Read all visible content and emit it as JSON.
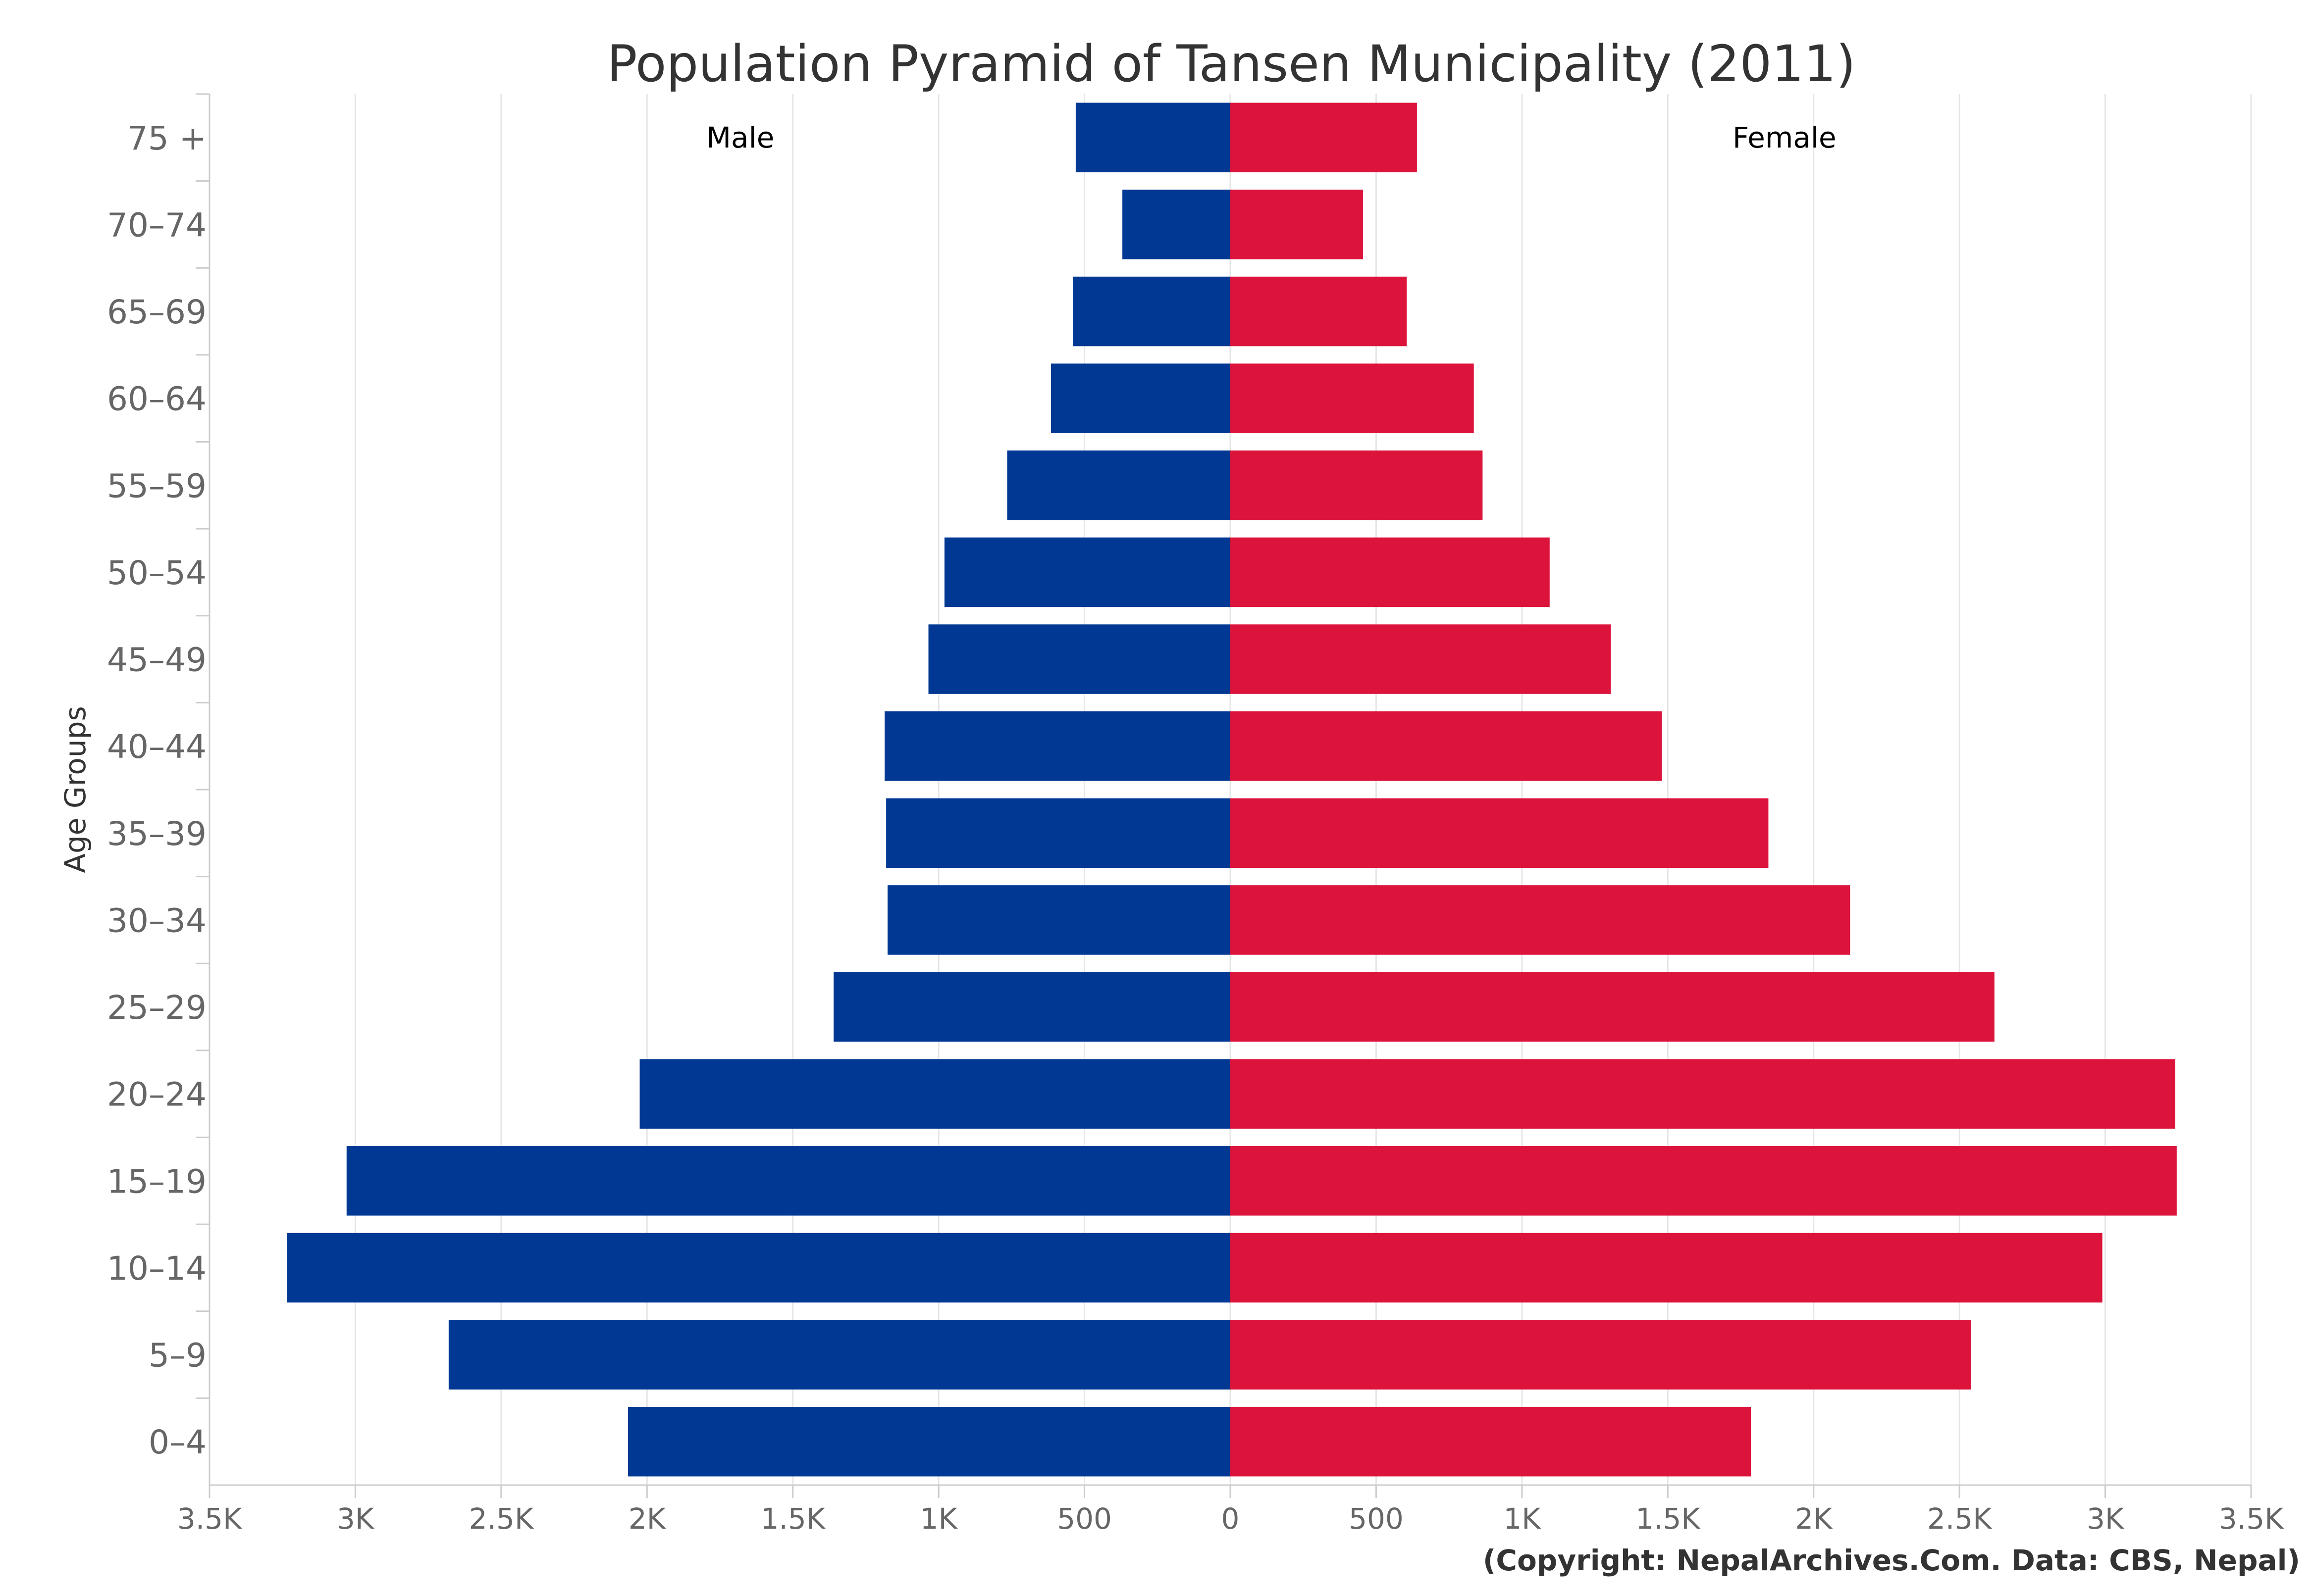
{
  "chart_data": {
    "type": "bar",
    "orientation": "horizontal",
    "title": "Population Pyramid of Tansen Municipality (2011)",
    "ylabel": "Age Groups",
    "xlabel": "",
    "xlim": [
      -3500,
      3500
    ],
    "xticks": [
      -3500,
      -3000,
      -2500,
      -2000,
      -1500,
      -1000,
      -500,
      0,
      500,
      1000,
      1500,
      2000,
      2500,
      3000,
      3500
    ],
    "xtick_labels": [
      "3.5K",
      "3K",
      "2.5K",
      "2K",
      "1.5K",
      "1K",
      "500",
      "0",
      "500",
      "1K",
      "1.5K",
      "2K",
      "2.5K",
      "3K",
      "3.5K"
    ],
    "grid": true,
    "categories": [
      "75 +",
      "70-74",
      "65-69",
      "60-64",
      "55-59",
      "50-54",
      "45-49",
      "40-44",
      "35-39",
      "30-34",
      "25-29",
      "20-24",
      "15-19",
      "10-14",
      "5-9",
      "0-4"
    ],
    "series": [
      {
        "name": "Male",
        "color": "#003893",
        "values": [
          530,
          370,
          540,
          615,
          765,
          980,
          1035,
          1185,
          1180,
          1175,
          1360,
          2025,
          3030,
          3235,
          2680,
          2065
        ]
      },
      {
        "name": "Female",
        "color": "#DC143C",
        "values": [
          640,
          455,
          605,
          835,
          865,
          1095,
          1305,
          1480,
          1845,
          2125,
          2620,
          3240,
          3245,
          2990,
          2540,
          1785
        ]
      }
    ],
    "credit": "(Copyright: NepalArchives.Com. Data: CBS, Nepal)"
  }
}
